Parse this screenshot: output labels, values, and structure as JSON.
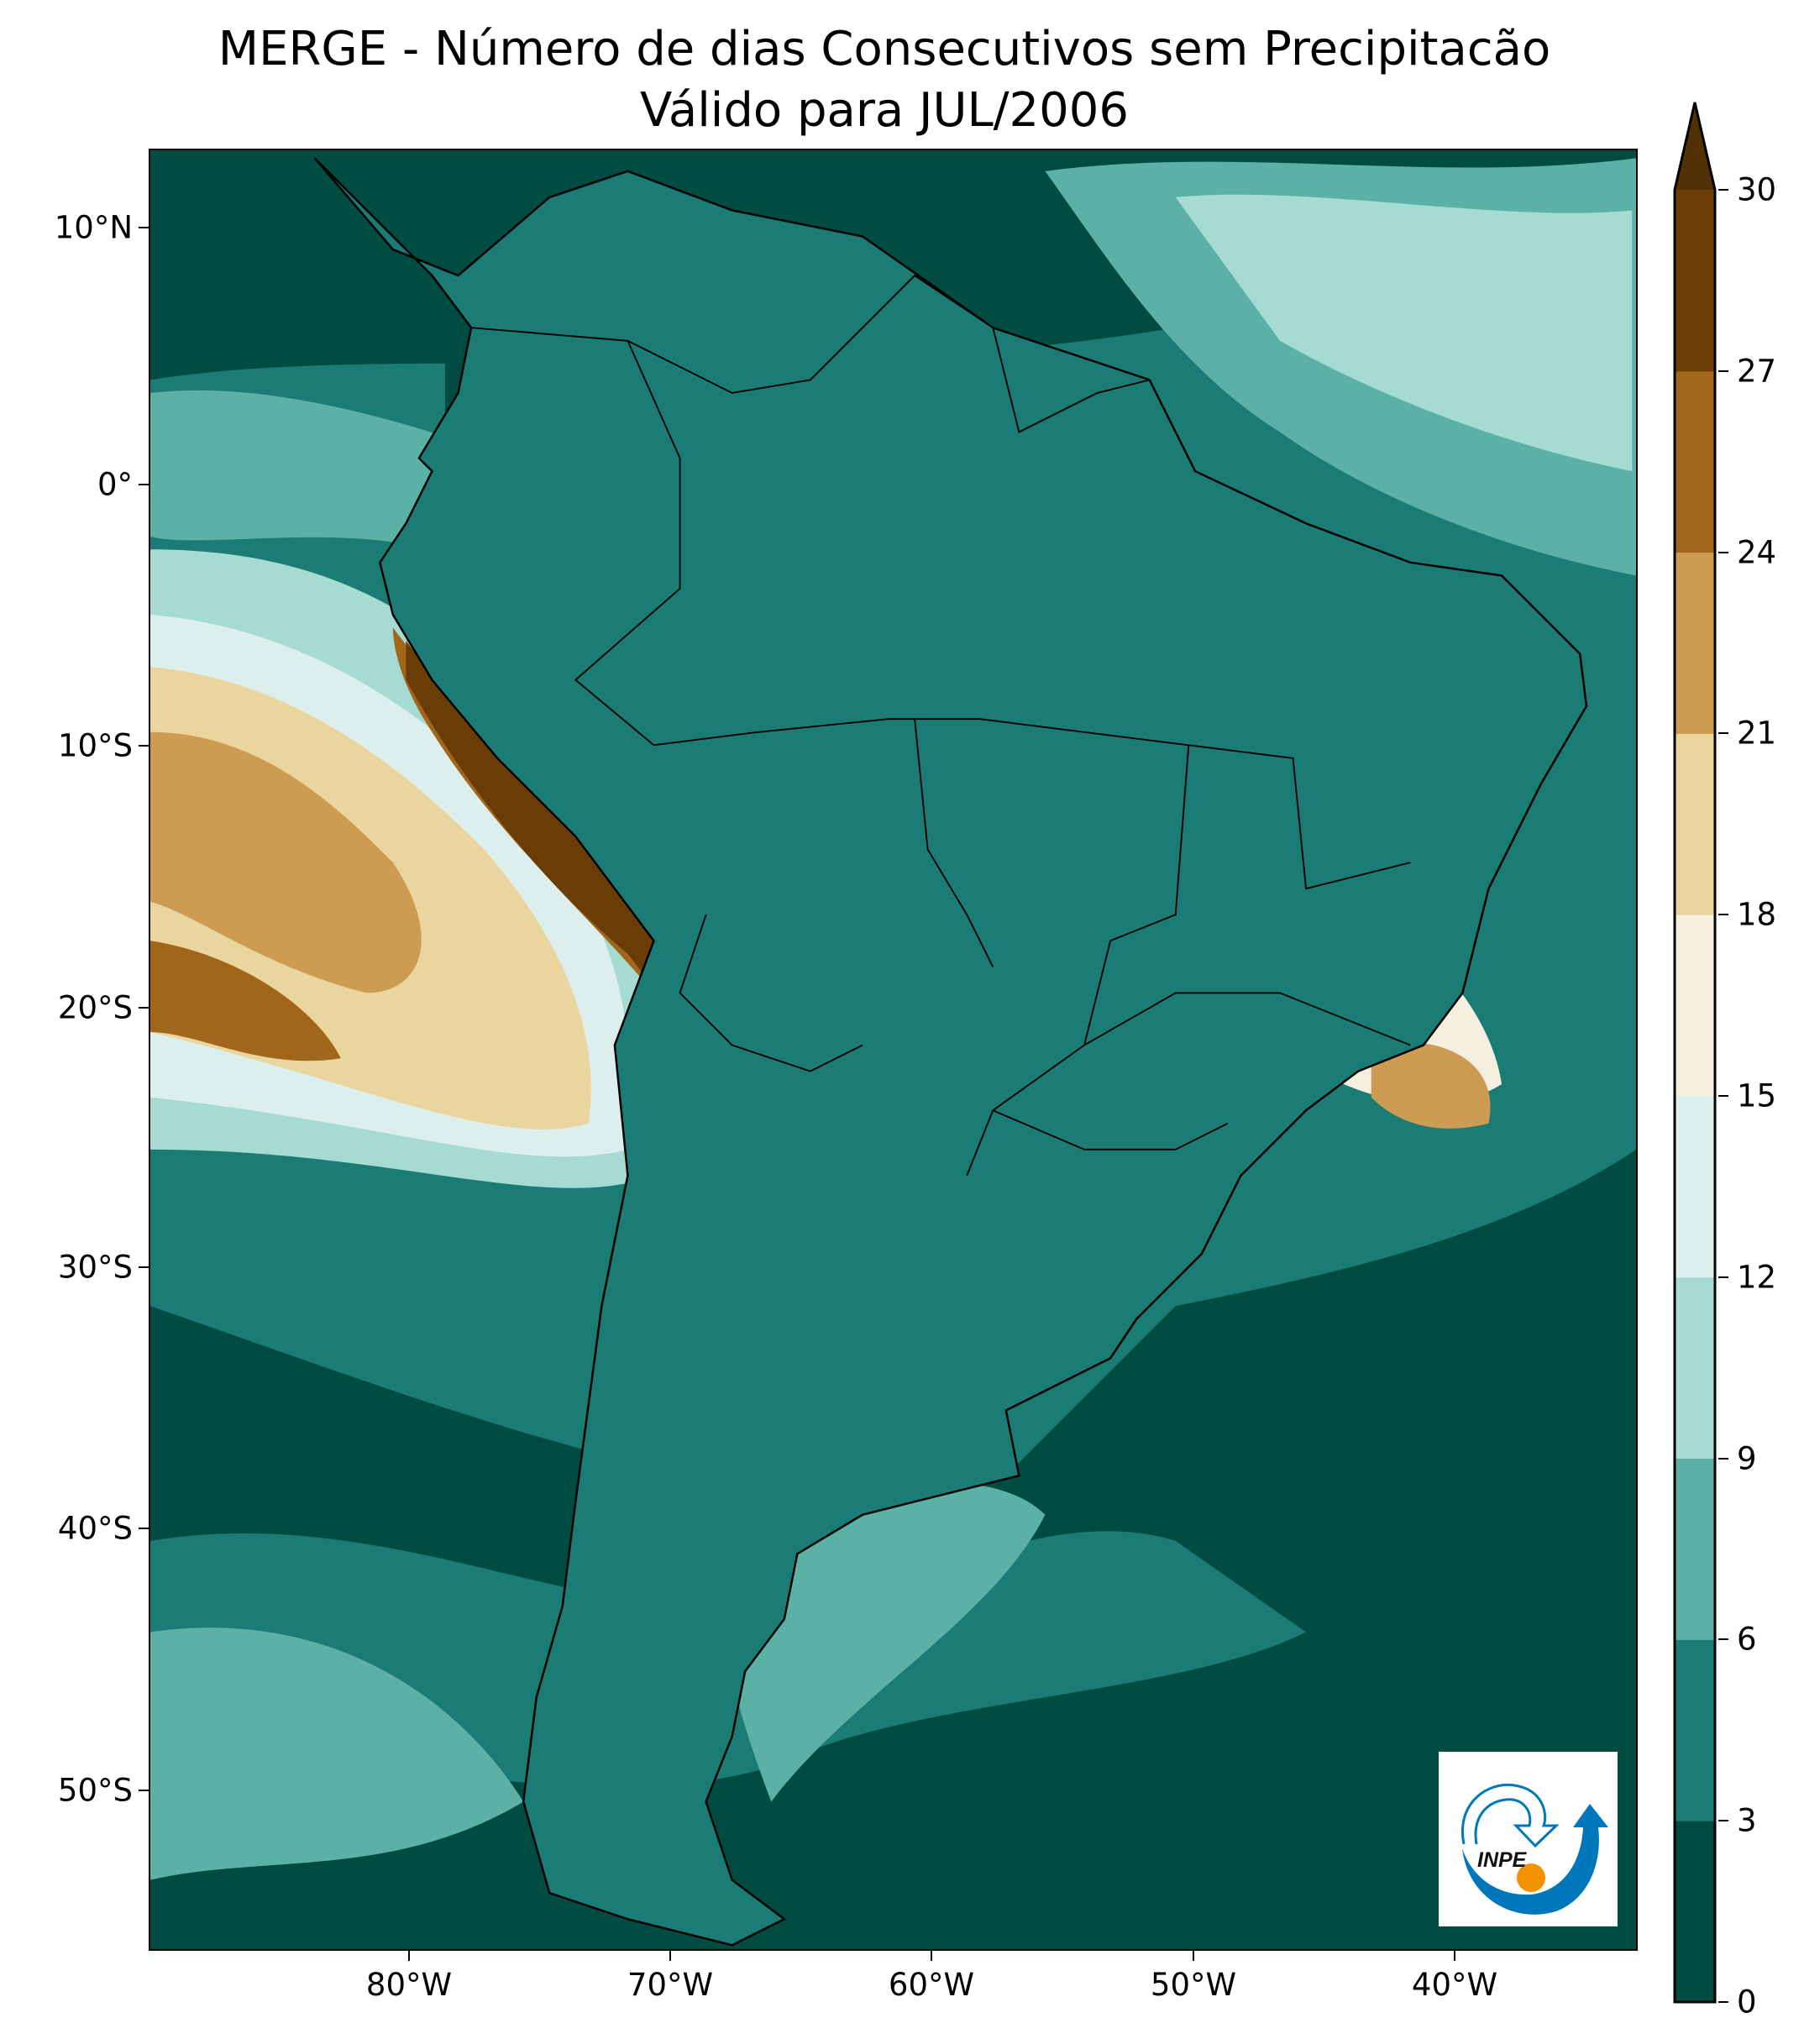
{
  "title": {
    "line1": "MERGE - Número de dias Consecutivos sem Precipitacão",
    "line2": "Válido para JUL/2006"
  },
  "axes": {
    "lat_labels": [
      "10°N",
      "0°",
      "10°S",
      "20°S",
      "30°S",
      "40°S",
      "50°S"
    ],
    "lon_labels": [
      "80°W",
      "70°W",
      "60°W",
      "50°W",
      "40°W"
    ]
  },
  "colorbar": {
    "ticks": [
      "0",
      "3",
      "6",
      "9",
      "12",
      "15",
      "18",
      "21",
      "24",
      "27",
      "30"
    ],
    "colors": [
      "#004c42",
      "#1b7b75",
      "#5cb1a6",
      "#a5dbd2",
      "#ddefec",
      "#f5efdf",
      "#ead59f",
      "#cd9b52",
      "#a1661a",
      "#6b3d06"
    ],
    "extend_color": "#543005"
  },
  "logo": {
    "text": "INPE",
    "blue": "#0077bb",
    "orange": "#f39200"
  }
}
